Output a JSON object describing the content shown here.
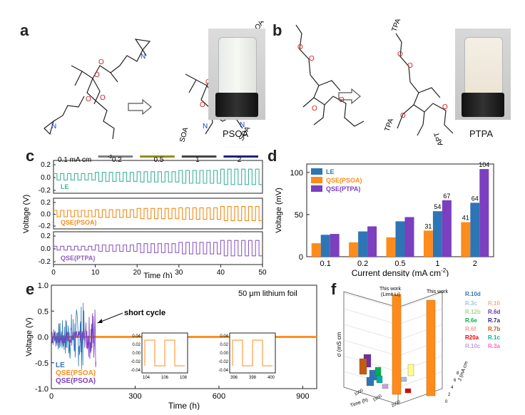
{
  "panels": {
    "a": "a",
    "b": "b",
    "c": "c",
    "d": "d",
    "e": "e",
    "f": "f"
  },
  "panel_a": {
    "substituent": "SOA",
    "product_label": "PSOA"
  },
  "panel_b": {
    "substituent": "TPA",
    "substituent_rotated": "APT",
    "product_label": "PTPA"
  },
  "panel_c": {
    "current_labels": [
      "0.1 mA cm",
      "-2",
      "0.2",
      "0.5",
      "1",
      "2"
    ],
    "current_bar_colors": [
      "#9a9a9a",
      "#7f7f7f",
      "#8f8f1a",
      "#444444",
      "#1a237e"
    ],
    "traces": [
      {
        "name": "LE",
        "color": "#3db39a",
        "amplitude": [
          0.05,
          0.07,
          0.08,
          0.1,
          0.12
        ]
      },
      {
        "name": "QSE(PSOA)",
        "color": "#f28c18",
        "amplitude": [
          0.05,
          0.06,
          0.08,
          0.09,
          0.11
        ]
      },
      {
        "name": "QSE(PTPA)",
        "color": "#8e5cc2",
        "amplitude": [
          0.03,
          0.05,
          0.07,
          0.09,
          0.12
        ]
      }
    ],
    "ylabel": "Voltage (V)",
    "xlabel": "Time (h)",
    "x_ticks": [
      "0",
      "10",
      "20",
      "30",
      "40",
      "50"
    ],
    "y_ticks_top": [
      "0.2",
      "0.0",
      "-0.2"
    ],
    "y_ticks_mid": [
      "0.2",
      "0.0",
      "-0.2"
    ],
    "y_ticks_bot": [
      "0.2",
      "0.0",
      "-0.2"
    ]
  },
  "chart_data": [
    {
      "type": "bar",
      "categories": [
        "0.1",
        "0.2",
        "0.5",
        "1",
        "2"
      ],
      "series": [
        {
          "name": "LE",
          "color": "#2e75b6",
          "values": [
            26,
            30,
            42,
            54,
            64
          ]
        },
        {
          "name": "QSE(PSOA)",
          "color": "#ff8c1a",
          "values": [
            16,
            17,
            23,
            31,
            41
          ]
        },
        {
          "name": "QSE(PTPA)",
          "color": "#7b3fbf",
          "values": [
            27,
            36,
            47,
            67,
            104
          ]
        }
      ],
      "data_labels": {
        "QSE(PSOA)": [
          "",
          "",
          "",
          "31",
          "41"
        ],
        "LE": [
          "",
          "",
          "",
          "54",
          "64"
        ],
        "QSE(PTPA)": [
          "",
          "",
          "",
          "67",
          "104"
        ]
      },
      "xlabel": "Current density (mA cm",
      "xlabel_sup": "-2",
      "xlabel_end": ")",
      "ylabel": "Voltage (mV)",
      "ylim": [
        0,
        110
      ],
      "y_ticks": [
        "0",
        "50",
        "100"
      ],
      "legend": "top-left"
    },
    {
      "type": "line",
      "title": "50 μm lithium foil",
      "xlabel": "Time (h)",
      "ylabel": "Voltage (V)",
      "x_ticks": [
        "0",
        "300",
        "600",
        "900"
      ],
      "y_ticks": [
        "1.0",
        "0.5",
        "0.0",
        "-0.5",
        "-1.0"
      ],
      "xlim": [
        0,
        950
      ],
      "ylim": [
        -1.0,
        1.0
      ],
      "annotation": "short cycle",
      "series": [
        {
          "name": "LE",
          "color": "#2e75b6",
          "end_time_h": 120
        },
        {
          "name": "QSE(PSOA)",
          "color": "#ff8c1a",
          "end_time_h": 950
        },
        {
          "name": "QSE(PSOA)",
          "color": "#7b3fbf",
          "end_time_h": 160
        }
      ],
      "insets": [
        {
          "x_ticks": [
            "104",
            "106",
            "108"
          ],
          "y_ticks": [
            "0.04",
            "0.02",
            "0.00",
            "-0.02",
            "-0.04"
          ]
        },
        {
          "x_ticks": [
            "396",
            "398",
            "400"
          ],
          "y_ticks": [
            "0.04",
            "0.02",
            "0.00",
            "-0.02",
            "-0.04"
          ]
        }
      ]
    }
  ],
  "panel_f": {
    "callouts": [
      "This work",
      "(Limit Li)",
      "This work"
    ],
    "axis_labels": {
      "z": "σ (mS cm",
      "x": "Time (h)",
      "y": "J (mA cm"
    },
    "x_ticks": [
      "1000",
      "1500",
      "2000"
    ],
    "y_ticks": [
      "0",
      "2",
      "4",
      "6",
      "8"
    ],
    "refs": [
      [
        "R.10d",
        "#2e75b6"
      ],
      [
        "R.3c",
        "#9dc3e6"
      ],
      [
        "R.16",
        "#f4b183"
      ],
      [
        "R.12b",
        "#a9d18e"
      ],
      [
        "R.6d",
        "#7030a0"
      ],
      [
        "R.6e",
        "#00b050"
      ],
      [
        "R.7a",
        "#1f1f7a"
      ],
      [
        "R.6f",
        "#ff9999"
      ],
      [
        "R.7b",
        "#c55a11"
      ],
      [
        "R20a",
        "#e00000"
      ],
      [
        "R.1c",
        "#00b0a0"
      ],
      [
        "R.10c",
        "#c9a0dc"
      ],
      [
        "R.3a",
        "#ff66cc"
      ]
    ]
  }
}
